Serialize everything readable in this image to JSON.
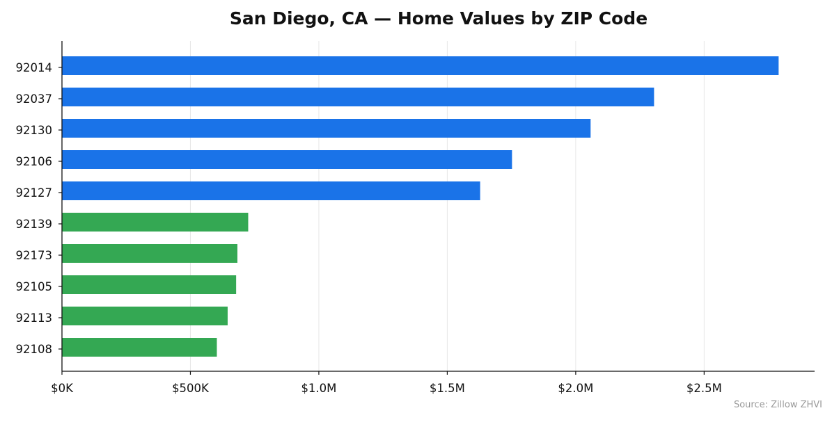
{
  "chart_data": {
    "type": "bar",
    "orientation": "horizontal",
    "title": "San Diego, CA — Home Values by ZIP Code",
    "xlabel": "",
    "ylabel": "",
    "categories": [
      "92014",
      "92037",
      "92130",
      "92106",
      "92127",
      "92139",
      "92173",
      "92105",
      "92113",
      "92108"
    ],
    "values": [
      2790000,
      2305000,
      2058000,
      1752000,
      1628000,
      725000,
      683000,
      678000,
      645000,
      603000
    ],
    "bar_colors": [
      "#1a73e8",
      "#1a73e8",
      "#1a73e8",
      "#1a73e8",
      "#1a73e8",
      "#34a853",
      "#34a853",
      "#34a853",
      "#34a853",
      "#34a853"
    ],
    "xlim": [
      0,
      2930000
    ],
    "xticks": [
      0,
      500000,
      1000000,
      1500000,
      2000000,
      2500000
    ],
    "xtick_labels": [
      "$0K",
      "$500K",
      "$1.0M",
      "$1.5M",
      "$2.0M",
      "$2.5M"
    ],
    "grid": "vertical",
    "legend": "none",
    "source_note": "Source: Zillow ZHVI"
  }
}
